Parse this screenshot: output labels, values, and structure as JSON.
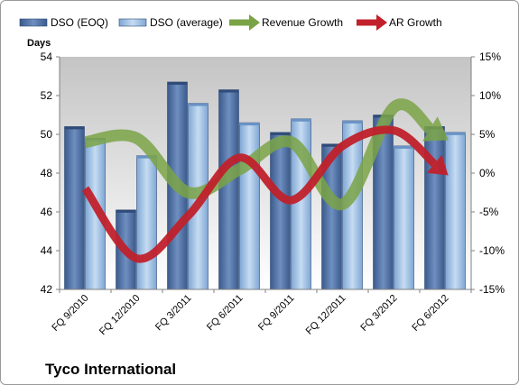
{
  "chart_data": {
    "type": "bar",
    "title": "Tyco International",
    "ylabel": "Days",
    "y2label": "",
    "categories": [
      "FQ 9/2010",
      "FQ 12/2010",
      "FQ 3/2011",
      "FQ 6/2011",
      "FQ 9/2011",
      "FQ 12/2011",
      "FQ 3/2012",
      "FQ 6/2012"
    ],
    "ylim": [
      42,
      54
    ],
    "yticks": [
      42,
      44,
      46,
      48,
      50,
      52,
      54
    ],
    "y2lim": [
      -15,
      15
    ],
    "y2ticks": [
      "-15%",
      "-10%",
      "-5%",
      "0%",
      "5%",
      "10%",
      "15%"
    ],
    "series": [
      {
        "name": "DSO (EOQ)",
        "kind": "bar",
        "axis": "left",
        "color": "#4a6a9a",
        "values": [
          50.4,
          46.1,
          52.7,
          52.3,
          50.1,
          49.5,
          51.0,
          50.4
        ]
      },
      {
        "name": "DSO (average)",
        "kind": "bar",
        "axis": "left",
        "color": "#8fb4dc",
        "values": [
          49.8,
          48.9,
          51.6,
          50.6,
          50.8,
          50.7,
          49.4,
          50.1
        ]
      },
      {
        "name": "Revenue Growth",
        "kind": "arrow-line",
        "axis": "right",
        "color": "#7aa346",
        "values": [
          4.0,
          4.5,
          -2.5,
          0.5,
          4.0,
          -4.0,
          8.5,
          4.5
        ]
      },
      {
        "name": "AR Growth",
        "kind": "arrow-line",
        "axis": "right",
        "color": "#c0212b",
        "values": [
          -2.0,
          -11.0,
          -5.5,
          2.0,
          -3.5,
          3.5,
          5.5,
          0.0
        ]
      }
    ],
    "grid": false,
    "legend_position": "top"
  }
}
